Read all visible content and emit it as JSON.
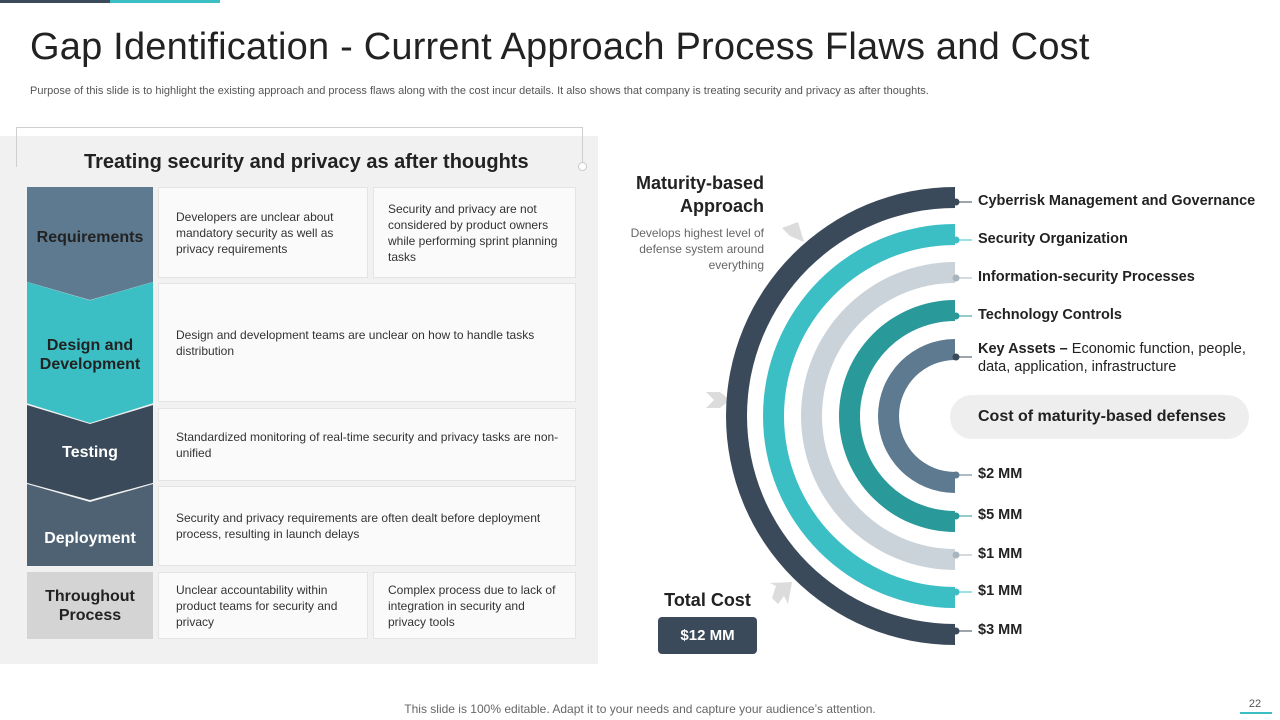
{
  "slide": {
    "title": "Gap Identification - Current Approach Process Flaws and Cost",
    "subtitle": "Purpose of this slide is to highlight the existing approach and process flaws along with the cost incur details. It also shows that company is treating security and privacy as after thoughts.",
    "footer": "This slide is 100% editable. Adapt it to your needs and capture your audience’s attention.",
    "page_number": "22"
  },
  "left_panel": {
    "heading": "Treating security and privacy as after thoughts",
    "rows": [
      {
        "stage": "Requirements",
        "color": "#5e7a90",
        "cells": [
          "Developers are unclear about mandatory security as well as privacy requirements",
          "Security and privacy are not considered by product owners while performing sprint planning tasks"
        ]
      },
      {
        "stage": "Design and Development",
        "color": "#3cbfc4",
        "cells": [
          "Design and development teams are unclear on how to handle tasks distribution"
        ]
      },
      {
        "stage": "Testing",
        "color": "#3b4a5a",
        "cells": [
          "Standardized monitoring of real-time security and privacy tasks are non-unified"
        ]
      },
      {
        "stage": "Deployment",
        "color": "#4e6274",
        "cells": [
          "Security and privacy requirements are often dealt before deployment process, resulting in launch delays"
        ]
      },
      {
        "stage": "Throughout Process",
        "color": "#d4d4d4",
        "cells": [
          "Unclear accountability within product teams for security and privacy",
          "Complex process due to lack of integration in security and privacy tools"
        ]
      }
    ]
  },
  "right_panel": {
    "maturity_title": "Maturity-based Approach",
    "maturity_desc": "Develops highest level of defense system around everything",
    "layers": [
      "Cyberrisk Management and Governance",
      "Security Organization",
      "Information-security Processes",
      "Technology Controls"
    ],
    "key_assets_label": "Key Assets –",
    "key_assets_text": "Economic function, people, data, application, infrastructure",
    "cost_heading": "Cost of maturity-based defenses",
    "costs": [
      "$2 MM",
      "$5 MM",
      "$1 MM",
      "$1 MM",
      "$3 MM"
    ],
    "total_label": "Total Cost",
    "total_value": "$12 MM",
    "colors": {
      "outer": "#3b4a5a",
      "teal": "#3cbfc4",
      "light": "#cbd3da",
      "dark_teal": "#2a9999",
      "slate": "#5e7a90",
      "arrow": "#dcdcdc"
    }
  }
}
